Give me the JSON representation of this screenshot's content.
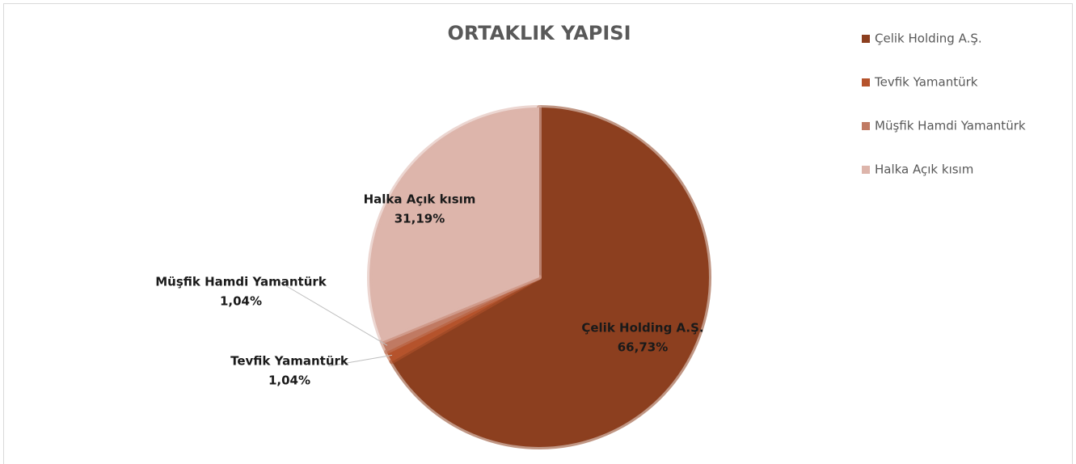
{
  "chart_data": {
    "type": "pie",
    "title": "ORTAKLIK YAPISI",
    "categories": [
      "Çelik Holding A.Ş.",
      "Tevfik Yamantürk",
      "Müşfik Hamdi Yamantürk",
      "Halka Açık kısım"
    ],
    "values": [
      66.73,
      1.04,
      1.04,
      31.19
    ],
    "value_labels": [
      "66,73%",
      "1,04%",
      "1,04%",
      "31,19%"
    ],
    "colors": [
      "#8c3f1f",
      "#b5532c",
      "#c07a63",
      "#ddb5ab"
    ],
    "legend": "right"
  }
}
